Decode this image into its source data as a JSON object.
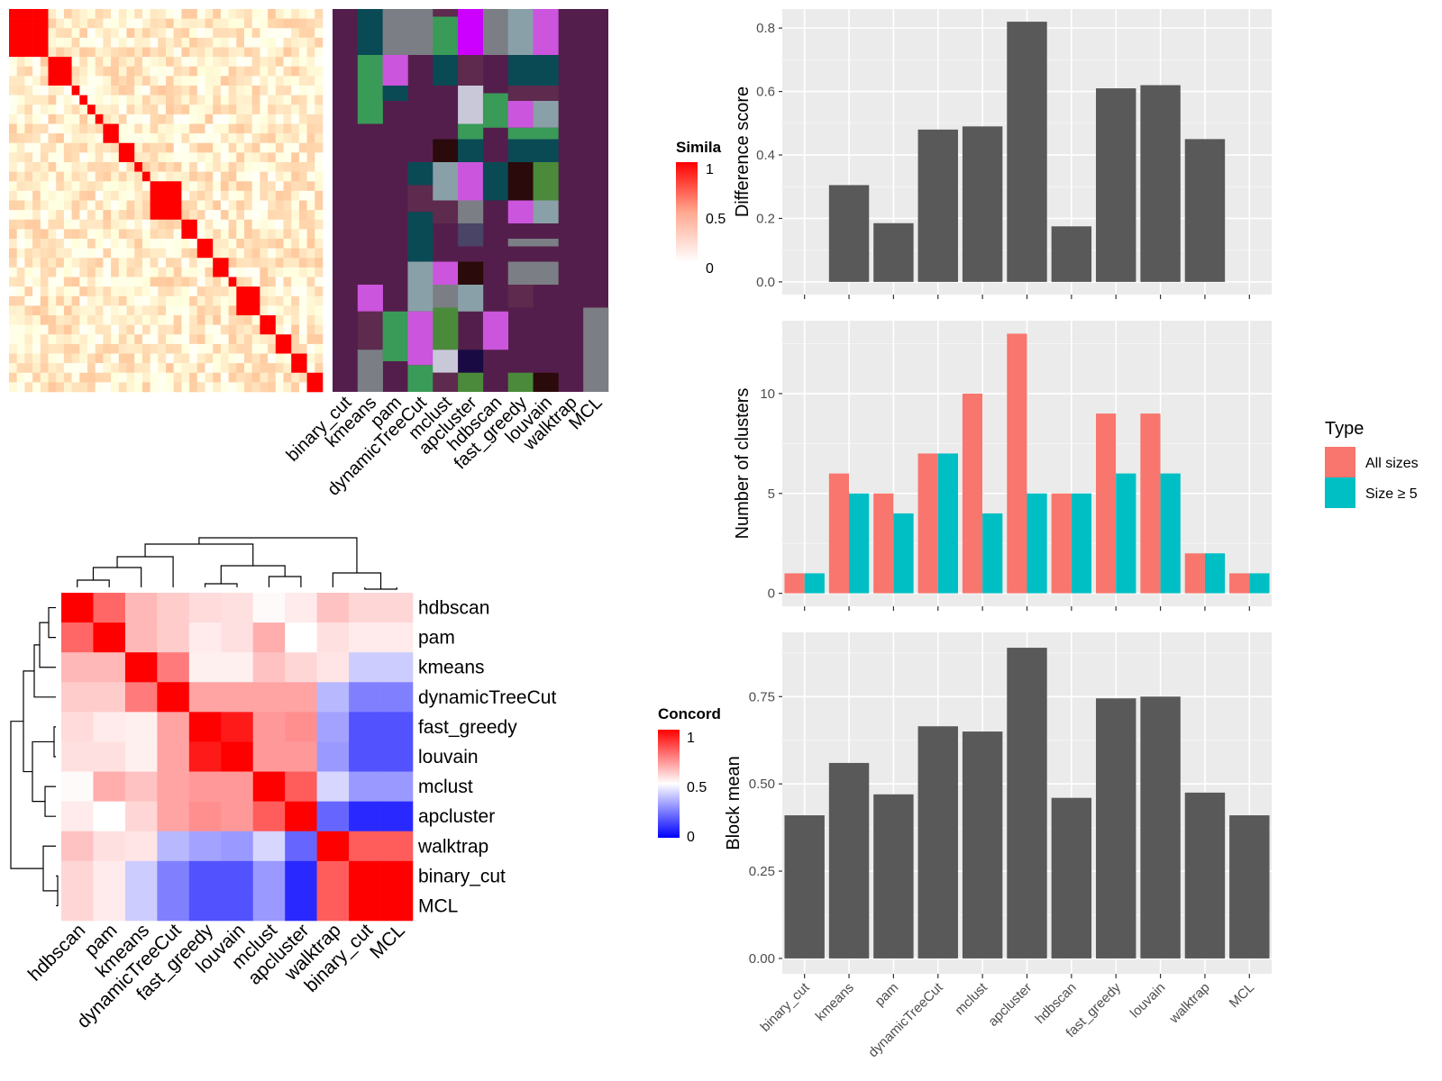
{
  "colors": {
    "panel_bg": "#ebebeb",
    "grid": "#ffffff",
    "bar_dark": "#595959",
    "all_sizes": "#f8766d",
    "size_ge5": "#00bfc4",
    "sim_high": "#ff0000",
    "sim_low": "#ffffff",
    "conc_low": "#0000ff",
    "conc_mid": "#ffffff",
    "conc_high": "#ff0000",
    "class_bg": "#541e4c",
    "class_palette": [
      "#541e4c",
      "#0a4a55",
      "#7b7e85",
      "#3a9a58",
      "#c9c8d8",
      "#cc55dd",
      "#8aa0a8",
      "#cc00ff",
      "#2a0a0a",
      "#5e2a4e",
      "#4a4466",
      "#4a8a3a",
      "#1a0a44"
    ]
  },
  "similarity_heatmap": {
    "legend_title": "Simila",
    "legend_ticks": [
      "1",
      "0.5",
      "0"
    ],
    "column_labels": [
      "binary_cut",
      "kmeans",
      "pam",
      "dynamicTreeCut",
      "mclust",
      "apcluster",
      "hdbscan",
      "fast_greedy",
      "louvain",
      "walktrap",
      "MCL"
    ]
  },
  "concordance_heatmap": {
    "legend_title": "Concord",
    "legend_ticks": [
      "1",
      "0.5",
      "0"
    ],
    "row_labels": [
      "hdbscan",
      "pam",
      "kmeans",
      "dynamicTreeCut",
      "fast_greedy",
      "louvain",
      "mclust",
      "apcluster",
      "walktrap",
      "binary_cut",
      "MCL"
    ],
    "col_labels": [
      "hdbscan",
      "pam",
      "kmeans",
      "dynamicTreeCut",
      "fast_greedy",
      "louvain",
      "mclust",
      "apcluster",
      "walktrap",
      "binary_cut",
      "MCL"
    ],
    "matrix": [
      [
        1.0,
        0.8,
        0.64,
        0.6,
        0.57,
        0.56,
        0.51,
        0.54,
        0.62,
        0.58,
        0.58
      ],
      [
        0.8,
        1.0,
        0.64,
        0.6,
        0.54,
        0.56,
        0.66,
        0.5,
        0.56,
        0.54,
        0.54
      ],
      [
        0.64,
        0.64,
        1.0,
        0.76,
        0.53,
        0.53,
        0.62,
        0.58,
        0.55,
        0.4,
        0.4
      ],
      [
        0.6,
        0.6,
        0.76,
        1.0,
        0.68,
        0.68,
        0.68,
        0.68,
        0.36,
        0.25,
        0.25
      ],
      [
        0.57,
        0.54,
        0.53,
        0.68,
        1.0,
        0.95,
        0.7,
        0.72,
        0.32,
        0.16,
        0.16
      ],
      [
        0.56,
        0.56,
        0.53,
        0.68,
        0.95,
        1.0,
        0.7,
        0.7,
        0.3,
        0.16,
        0.16
      ],
      [
        0.51,
        0.66,
        0.62,
        0.68,
        0.7,
        0.7,
        1.0,
        0.82,
        0.42,
        0.3,
        0.3
      ],
      [
        0.54,
        0.5,
        0.58,
        0.68,
        0.72,
        0.7,
        0.82,
        1.0,
        0.2,
        0.08,
        0.08
      ],
      [
        0.62,
        0.56,
        0.55,
        0.36,
        0.32,
        0.3,
        0.42,
        0.2,
        1.0,
        0.82,
        0.82
      ],
      [
        0.58,
        0.54,
        0.4,
        0.25,
        0.16,
        0.16,
        0.3,
        0.08,
        0.82,
        1.0,
        1.0
      ],
      [
        0.58,
        0.54,
        0.4,
        0.25,
        0.16,
        0.16,
        0.3,
        0.08,
        0.82,
        1.0,
        1.0
      ]
    ]
  },
  "chart_data": [
    {
      "type": "heatmap",
      "title": "",
      "legend_title": "Simila",
      "note": "term similarity matrix with cluster assignments per method",
      "columns": [
        "binary_cut",
        "kmeans",
        "pam",
        "dynamicTreeCut",
        "mclust",
        "apcluster",
        "hdbscan",
        "fast_greedy",
        "louvain",
        "walktrap",
        "MCL"
      ],
      "scale": [
        0,
        1
      ]
    },
    {
      "type": "heatmap",
      "title": "",
      "legend_title": "Concord",
      "rows": [
        "hdbscan",
        "pam",
        "kmeans",
        "dynamicTreeCut",
        "fast_greedy",
        "louvain",
        "mclust",
        "apcluster",
        "walktrap",
        "binary_cut",
        "MCL"
      ],
      "scale": [
        0,
        1
      ]
    },
    {
      "type": "bar",
      "title": "",
      "xlabel": "",
      "ylabel": "Difference score",
      "categories": [
        "binary_cut",
        "kmeans",
        "pam",
        "dynamicTreeCut",
        "mclust",
        "apcluster",
        "hdbscan",
        "fast_greedy",
        "louvain",
        "walktrap",
        "MCL"
      ],
      "values": [
        0,
        0.305,
        0.185,
        0.48,
        0.49,
        0.82,
        0.175,
        0.61,
        0.62,
        0.45,
        0
      ],
      "ylim": [
        -0.04,
        0.86
      ],
      "yticks": [
        0.0,
        0.2,
        0.4,
        0.6,
        0.8
      ],
      "ytick_labels": [
        "0.0",
        "0.2",
        "0.4",
        "0.6",
        "0.8"
      ]
    },
    {
      "type": "bar",
      "title": "",
      "xlabel": "",
      "ylabel": "Number of clusters",
      "categories": [
        "binary_cut",
        "kmeans",
        "pam",
        "dynamicTreeCut",
        "mclust",
        "apcluster",
        "hdbscan",
        "fast_greedy",
        "louvain",
        "walktrap",
        "MCL"
      ],
      "series": [
        {
          "name": "All sizes",
          "values": [
            1,
            6,
            5,
            7,
            10,
            13,
            5,
            9,
            9,
            2,
            1
          ]
        },
        {
          "name": "Size ≥ 5",
          "values": [
            1,
            5,
            4,
            7,
            4,
            5,
            5,
            6,
            6,
            2,
            1
          ]
        }
      ],
      "legend_title": "Type",
      "legend_position": "right",
      "ylim": [
        -0.65,
        13.65
      ],
      "yticks": [
        0,
        5,
        10
      ],
      "ytick_labels": [
        "0",
        "5",
        "10"
      ]
    },
    {
      "type": "bar",
      "title": "",
      "xlabel": "",
      "ylabel": "Block mean",
      "categories": [
        "binary_cut",
        "kmeans",
        "pam",
        "dynamicTreeCut",
        "mclust",
        "apcluster",
        "hdbscan",
        "fast_greedy",
        "louvain",
        "walktrap",
        "MCL"
      ],
      "values": [
        0.41,
        0.56,
        0.47,
        0.665,
        0.65,
        0.89,
        0.46,
        0.745,
        0.75,
        0.475,
        0.41
      ],
      "ylim": [
        -0.044,
        0.934
      ],
      "yticks": [
        0.0,
        0.25,
        0.5,
        0.75
      ],
      "ytick_labels": [
        "0.00",
        "0.25",
        "0.50",
        "0.75"
      ]
    }
  ]
}
